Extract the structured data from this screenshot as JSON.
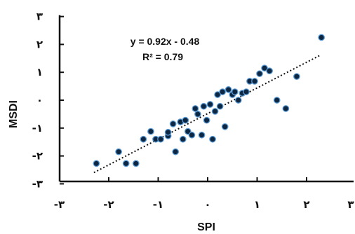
{
  "chart_data": {
    "type": "scatter",
    "xlabel": "SPI",
    "ylabel": "MSDI",
    "xlim": [
      -3,
      3
    ],
    "ylim": [
      -3,
      3
    ],
    "x_ticks": [
      {
        "value": -3,
        "label": "-۳"
      },
      {
        "value": -2,
        "label": "-۲"
      },
      {
        "value": -1,
        "label": "-۱"
      },
      {
        "value": 0,
        "label": "۰"
      },
      {
        "value": 1,
        "label": "۱"
      },
      {
        "value": 2,
        "label": "۲"
      },
      {
        "value": 3,
        "label": "۳"
      }
    ],
    "y_ticks": [
      {
        "value": -3,
        "label": "-۳"
      },
      {
        "value": -2,
        "label": "-۲"
      },
      {
        "value": -1,
        "label": "-۱"
      },
      {
        "value": 0,
        "label": "۰"
      },
      {
        "value": 1,
        "label": "۱"
      },
      {
        "value": 2,
        "label": "۲"
      },
      {
        "value": 3,
        "label": "۳"
      }
    ],
    "grid": false,
    "equation": "y = 0.92x - 0.48",
    "r_squared": "R² = 0.79",
    "trendline": {
      "slope": 0.92,
      "intercept": -0.48,
      "style": "dotted"
    },
    "marker_color": "#0d2742",
    "marker_edge_color": "#5b9bd5",
    "points": [
      {
        "x": -2.25,
        "y": -2.27
      },
      {
        "x": -1.8,
        "y": -1.85
      },
      {
        "x": -1.65,
        "y": -2.27
      },
      {
        "x": -1.45,
        "y": -2.27
      },
      {
        "x": -1.3,
        "y": -1.4
      },
      {
        "x": -1.15,
        "y": -1.12
      },
      {
        "x": -1.05,
        "y": -1.4
      },
      {
        "x": -0.95,
        "y": -1.4
      },
      {
        "x": -0.8,
        "y": -1.28
      },
      {
        "x": -0.8,
        "y": -1.15
      },
      {
        "x": -0.7,
        "y": -0.85
      },
      {
        "x": -0.65,
        "y": -1.85
      },
      {
        "x": -0.55,
        "y": -0.78
      },
      {
        "x": -0.5,
        "y": -1.4
      },
      {
        "x": -0.45,
        "y": -0.72
      },
      {
        "x": -0.4,
        "y": -1.12
      },
      {
        "x": -0.32,
        "y": -1.25
      },
      {
        "x": -0.25,
        "y": -0.3
      },
      {
        "x": -0.2,
        "y": -0.5
      },
      {
        "x": -0.12,
        "y": -1.25
      },
      {
        "x": -0.08,
        "y": -0.22
      },
      {
        "x": -0.02,
        "y": -0.72
      },
      {
        "x": 0.05,
        "y": -0.15
      },
      {
        "x": 0.1,
        "y": -1.4
      },
      {
        "x": 0.15,
        "y": -0.4
      },
      {
        "x": 0.2,
        "y": 0.2
      },
      {
        "x": 0.25,
        "y": -0.22
      },
      {
        "x": 0.3,
        "y": 0.3
      },
      {
        "x": 0.35,
        "y": -0.95
      },
      {
        "x": 0.42,
        "y": 0.38
      },
      {
        "x": 0.5,
        "y": 0.2
      },
      {
        "x": 0.55,
        "y": 0.3
      },
      {
        "x": 0.62,
        "y": 0.0
      },
      {
        "x": 0.7,
        "y": 0.25
      },
      {
        "x": 0.78,
        "y": 0.3
      },
      {
        "x": 0.85,
        "y": 0.68
      },
      {
        "x": 0.95,
        "y": 0.68
      },
      {
        "x": 1.05,
        "y": 0.95
      },
      {
        "x": 1.15,
        "y": 1.15
      },
      {
        "x": 1.25,
        "y": 1.05
      },
      {
        "x": 1.4,
        "y": 0.0
      },
      {
        "x": 1.58,
        "y": -0.3
      },
      {
        "x": 1.8,
        "y": 0.85
      },
      {
        "x": 2.3,
        "y": 2.25
      }
    ]
  }
}
